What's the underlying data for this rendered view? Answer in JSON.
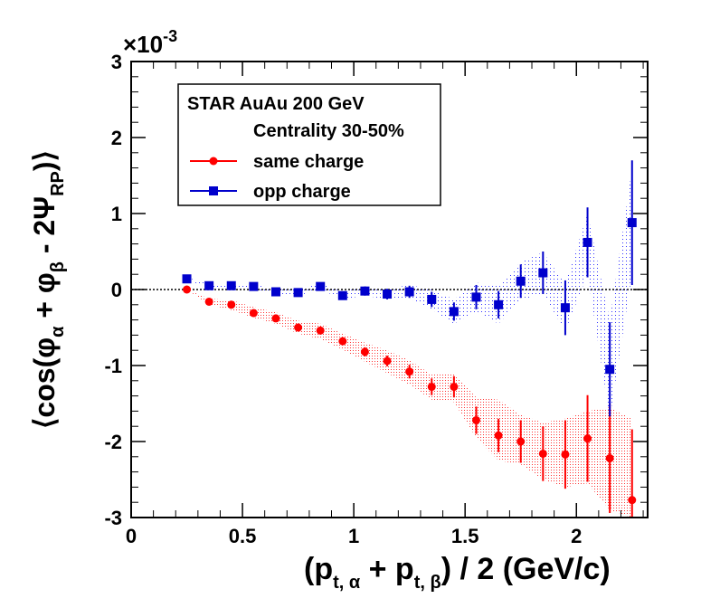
{
  "chart_data": {
    "type": "scatter",
    "title": "",
    "xlabel": "(p_t,α + p_t,β) / 2  (GeV/c)",
    "ylabel": "⟨cos(φ_α + φ_β - 2Ψ_RP)⟩",
    "exponent_label": "×10",
    "exponent_power": "-3",
    "xlim": [
      0,
      2.32
    ],
    "ylim": [
      -3,
      3
    ],
    "x_ticks": [
      0,
      0.5,
      1,
      1.5,
      2
    ],
    "x_tick_labels": [
      "0",
      "0.5",
      "1",
      "1.5",
      "2"
    ],
    "y_ticks": [
      -3,
      -2,
      -1,
      0,
      1,
      2,
      3
    ],
    "y_tick_labels": [
      "-3",
      "-2",
      "-1",
      "0",
      "1",
      "2",
      "3"
    ],
    "zero_line": true,
    "legend": {
      "position": "top-left",
      "header": "STAR  AuAu 200 GeV",
      "subheader": "Centrality 30-50%"
    },
    "series": [
      {
        "name": "same charge",
        "color": "#ff0000",
        "marker": "circle",
        "x": [
          0.25,
          0.35,
          0.45,
          0.55,
          0.65,
          0.75,
          0.85,
          0.95,
          1.05,
          1.15,
          1.25,
          1.35,
          1.45,
          1.55,
          1.65,
          1.75,
          1.85,
          1.95,
          2.05,
          2.15,
          2.25
        ],
        "y": [
          0.0,
          -0.16,
          -0.2,
          -0.31,
          -0.38,
          -0.5,
          -0.54,
          -0.68,
          -0.82,
          -0.94,
          -1.08,
          -1.28,
          -1.28,
          -1.72,
          -1.92,
          -2.0,
          -2.16,
          -2.17,
          -1.96,
          -2.22,
          -2.77
        ],
        "err": [
          0.02,
          0.03,
          0.03,
          0.03,
          0.03,
          0.04,
          0.04,
          0.05,
          0.06,
          0.07,
          0.09,
          0.11,
          0.14,
          0.18,
          0.22,
          0.28,
          0.36,
          0.45,
          0.57,
          0.72,
          0.93
        ],
        "band_low": [
          0.0,
          -0.2,
          -0.27,
          -0.37,
          -0.45,
          -0.58,
          -0.65,
          -0.79,
          -0.95,
          -1.1,
          -1.25,
          -1.45,
          -1.48,
          -1.95,
          -2.25,
          -2.3,
          -2.5,
          -2.6,
          -2.55,
          -2.9,
          -3.0
        ],
        "band_high": [
          0.0,
          -0.12,
          -0.14,
          -0.23,
          -0.3,
          -0.41,
          -0.45,
          -0.58,
          -0.7,
          -0.8,
          -0.93,
          -1.12,
          -1.1,
          -1.42,
          -1.45,
          -1.65,
          -1.75,
          -1.7,
          -1.6,
          -1.55,
          -1.7
        ]
      },
      {
        "name": "opp charge",
        "color": "#0000cc",
        "marker": "square",
        "x": [
          0.25,
          0.35,
          0.45,
          0.55,
          0.65,
          0.75,
          0.85,
          0.95,
          1.05,
          1.15,
          1.25,
          1.35,
          1.45,
          1.55,
          1.65,
          1.75,
          1.85,
          1.95,
          2.05,
          2.15,
          2.25
        ],
        "y": [
          0.14,
          0.05,
          0.05,
          0.04,
          -0.03,
          -0.04,
          0.04,
          -0.08,
          -0.02,
          -0.06,
          -0.03,
          -0.13,
          -0.29,
          -0.1,
          -0.2,
          0.11,
          0.22,
          -0.24,
          0.62,
          -1.05,
          0.88
        ],
        "err": [
          0.02,
          0.03,
          0.03,
          0.03,
          0.03,
          0.04,
          0.04,
          0.05,
          0.06,
          0.07,
          0.08,
          0.1,
          0.12,
          0.16,
          0.18,
          0.22,
          0.28,
          0.36,
          0.46,
          0.62,
          0.82
        ],
        "band_low": [
          0.12,
          0.03,
          0.02,
          0.01,
          -0.06,
          -0.08,
          0.0,
          -0.13,
          -0.08,
          -0.13,
          -0.12,
          -0.26,
          -0.45,
          -0.29,
          -0.45,
          -0.14,
          -0.05,
          -0.55,
          0.2,
          -1.7,
          0.2
        ],
        "band_high": [
          0.16,
          0.07,
          0.08,
          0.07,
          0.0,
          0.0,
          0.08,
          -0.03,
          0.04,
          0.01,
          0.06,
          0.0,
          -0.13,
          0.09,
          0.05,
          0.36,
          0.49,
          0.07,
          1.0,
          -0.4,
          1.6
        ]
      }
    ]
  }
}
